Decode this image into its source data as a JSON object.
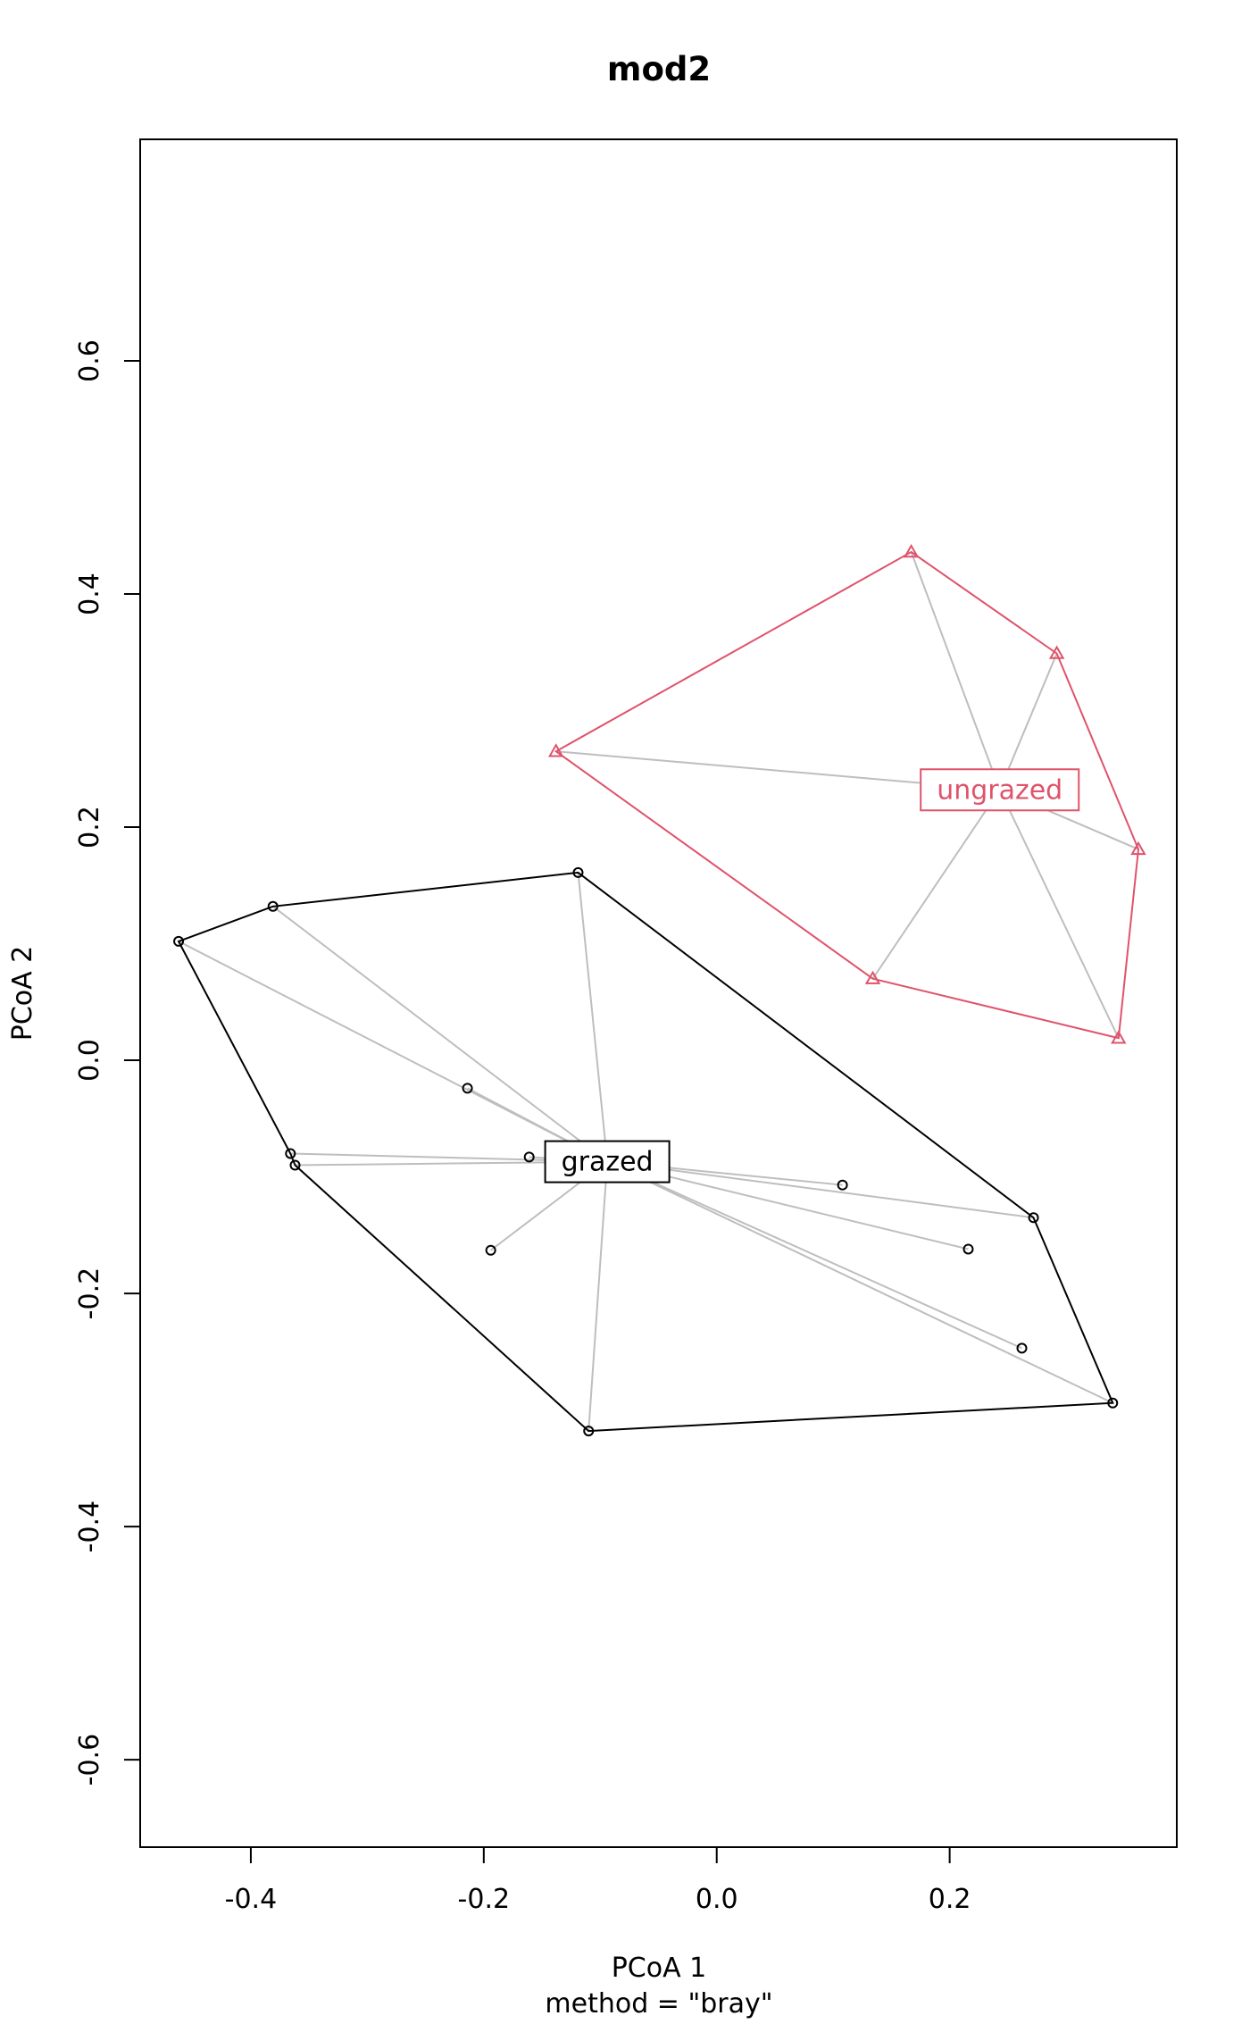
{
  "chart_data": {
    "type": "scatter",
    "title": "mod2",
    "xlabel": "PCoA 1",
    "sublabel": "method = \"bray\"",
    "ylabel": "PCoA 2",
    "xlim": [
      -0.495,
      0.395
    ],
    "ylim": [
      -0.675,
      0.79
    ],
    "xticks": [
      -0.4,
      -0.2,
      0.0,
      0.2
    ],
    "xtick_labels": [
      "-0.4",
      "-0.2",
      "0.0",
      "0.2"
    ],
    "yticks": [
      -0.6,
      -0.4,
      -0.2,
      0.0,
      0.2,
      0.4,
      0.6
    ],
    "ytick_labels": [
      "-0.6",
      "-0.4",
      "-0.2",
      "0.0",
      "0.2",
      "0.4",
      "0.6"
    ],
    "grid": false,
    "groups": [
      {
        "name": "grazed",
        "color": "#000000",
        "marker": "circle",
        "centroid": [
          -0.094,
          -0.087
        ],
        "points": [
          [
            -0.462,
            0.102
          ],
          [
            -0.381,
            0.132
          ],
          [
            -0.119,
            0.161
          ],
          [
            -0.214,
            -0.024
          ],
          [
            -0.366,
            -0.08
          ],
          [
            -0.362,
            -0.09
          ],
          [
            -0.161,
            -0.083
          ],
          [
            -0.194,
            -0.163
          ],
          [
            -0.11,
            -0.318
          ],
          [
            0.108,
            -0.107
          ],
          [
            0.216,
            -0.162
          ],
          [
            0.272,
            -0.135
          ],
          [
            0.262,
            -0.247
          ],
          [
            0.34,
            -0.294
          ]
        ],
        "hull": [
          [
            -0.462,
            0.102
          ],
          [
            -0.381,
            0.132
          ],
          [
            -0.119,
            0.161
          ],
          [
            0.272,
            -0.135
          ],
          [
            0.34,
            -0.294
          ],
          [
            -0.11,
            -0.318
          ],
          [
            -0.362,
            -0.09
          ],
          [
            -0.366,
            -0.08
          ]
        ]
      },
      {
        "name": "ungrazed",
        "color": "#DF536B",
        "marker": "triangle",
        "centroid": [
          0.243,
          0.232
        ],
        "points": [
          [
            0.167,
            0.436
          ],
          [
            0.292,
            0.349
          ],
          [
            -0.138,
            0.265
          ],
          [
            0.362,
            0.181
          ],
          [
            0.134,
            0.07
          ],
          [
            0.345,
            0.019
          ]
        ],
        "hull": [
          [
            0.167,
            0.436
          ],
          [
            0.292,
            0.349
          ],
          [
            0.362,
            0.181
          ],
          [
            0.345,
            0.019
          ],
          [
            0.134,
            0.07
          ],
          [
            -0.138,
            0.265
          ]
        ]
      }
    ],
    "spider_color": "#BEBEBE"
  }
}
